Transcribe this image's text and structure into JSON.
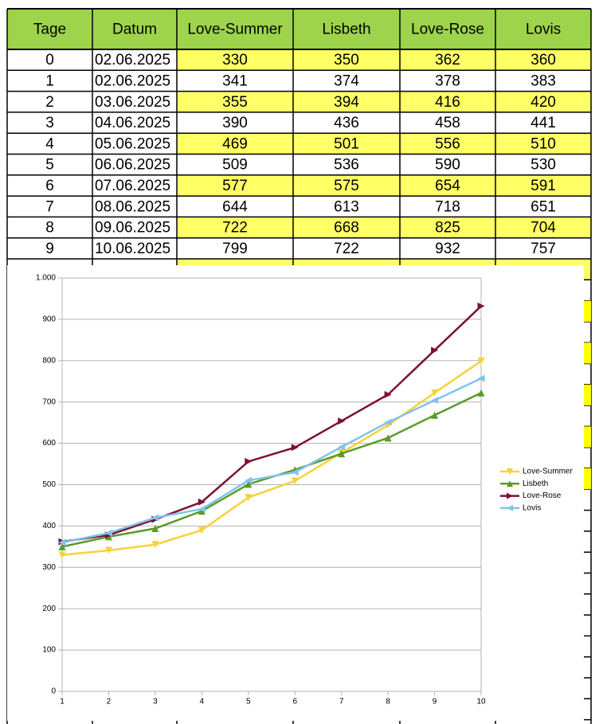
{
  "table": {
    "header": [
      "Tage",
      "Datum",
      "Love-Summer",
      "Lisbeth",
      "Love-Rose",
      "Lovis"
    ],
    "rows": [
      [
        0,
        "02.06.2025",
        330,
        350,
        362,
        360
      ],
      [
        1,
        "02.06.2025",
        341,
        374,
        378,
        383
      ],
      [
        2,
        "03.06.2025",
        355,
        394,
        416,
        420
      ],
      [
        3,
        "04.06.2025",
        390,
        436,
        458,
        441
      ],
      [
        4,
        "05.06.2025",
        469,
        501,
        556,
        510
      ],
      [
        5,
        "06.06.2025",
        509,
        536,
        590,
        530
      ],
      [
        6,
        "07.06.2025",
        577,
        575,
        654,
        591
      ],
      [
        7,
        "08.06.2025",
        644,
        613,
        718,
        651
      ],
      [
        8,
        "09.06.2025",
        722,
        668,
        825,
        704
      ],
      [
        9,
        "10.06.2025",
        799,
        722,
        932,
        757
      ]
    ]
  },
  "chart_data": {
    "type": "line",
    "x": [
      1,
      2,
      3,
      4,
      5,
      6,
      7,
      8,
      9,
      10
    ],
    "series": [
      {
        "name": "Love-Summer",
        "color": "#f7d23a",
        "marker": "down",
        "values": [
          330,
          341,
          355,
          390,
          469,
          509,
          577,
          644,
          722,
          799
        ]
      },
      {
        "name": "Lisbeth",
        "color": "#5b9a2b",
        "marker": "up",
        "values": [
          350,
          374,
          394,
          436,
          501,
          536,
          575,
          613,
          668,
          722
        ]
      },
      {
        "name": "Love-Rose",
        "color": "#7b1133",
        "marker": "right",
        "values": [
          362,
          378,
          416,
          458,
          556,
          590,
          654,
          718,
          825,
          932
        ]
      },
      {
        "name": "Lovis",
        "color": "#82c3ec",
        "marker": "left",
        "values": [
          360,
          383,
          420,
          441,
          510,
          530,
          591,
          651,
          704,
          757
        ]
      }
    ],
    "xlim": [
      1,
      10
    ],
    "xticks": [
      1,
      2,
      3,
      4,
      5,
      6,
      7,
      8,
      9,
      10
    ],
    "ylim": [
      0,
      1000
    ],
    "yticks": [
      0,
      100,
      200,
      300,
      400,
      500,
      600,
      700,
      800,
      900,
      {
        "value": 1000,
        "label": "1.000"
      }
    ],
    "grid": true,
    "legend": "right"
  }
}
